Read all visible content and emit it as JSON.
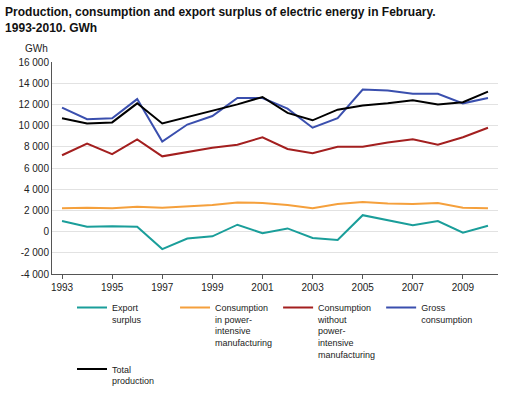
{
  "chart_data": {
    "type": "line",
    "title": "Production, consumption and export surplus of electric energy in February.\n1993-2010. GWh",
    "y_label": "GWh",
    "x": [
      1993,
      1994,
      1995,
      1996,
      1997,
      1998,
      1999,
      2000,
      2001,
      2002,
      2003,
      2004,
      2005,
      2006,
      2007,
      2008,
      2009,
      2010
    ],
    "xlim": [
      1992.6,
      2010.4
    ],
    "xticks": [
      1993,
      1995,
      1997,
      1999,
      2001,
      2003,
      2005,
      2007,
      2009
    ],
    "ylim": [
      -4000,
      16000
    ],
    "yticks": [
      {
        "value": -4000,
        "label": "-4 000"
      },
      {
        "value": -2000,
        "label": "-2 000"
      },
      0,
      {
        "value": 2000,
        "label": "2 000"
      },
      {
        "value": 4000,
        "label": "4 000"
      },
      {
        "value": 6000,
        "label": "6 000"
      },
      {
        "value": 8000,
        "label": "8 000"
      },
      {
        "value": 10000,
        "label": "10 000"
      },
      {
        "value": 12000,
        "label": "12 000"
      },
      {
        "value": 14000,
        "label": "14 000"
      },
      {
        "value": 16000,
        "label": "16 000"
      }
    ],
    "grid": true,
    "legend": "bottom",
    "series": [
      {
        "name": "Export surplus",
        "color": "#1a9e9a",
        "values": [
          1000,
          450,
          500,
          450,
          -1650,
          -650,
          -450,
          650,
          -150,
          300,
          -600,
          -800,
          1550,
          1100,
          600,
          1000,
          -100,
          550
        ]
      },
      {
        "name": "Consumption in power-intensive manufacturing",
        "color": "#f5a03c",
        "values": [
          2200,
          2250,
          2200,
          2350,
          2250,
          2400,
          2500,
          2750,
          2700,
          2500,
          2200,
          2600,
          2800,
          2650,
          2600,
          2700,
          2250,
          2200
        ]
      },
      {
        "name": "Consumption without power-intensive manufacturing",
        "color": "#a31f1f",
        "values": [
          7200,
          8300,
          7300,
          8700,
          7100,
          7500,
          7900,
          8200,
          8900,
          7800,
          7400,
          8000,
          8000,
          8400,
          8700,
          8200,
          8900,
          9800
        ]
      },
      {
        "name": "Gross consumption",
        "color": "#3a4fae",
        "values": [
          11700,
          10600,
          10700,
          12500,
          8500,
          10100,
          10900,
          12600,
          12600,
          11600,
          9800,
          10700,
          13400,
          13300,
          13000,
          13000,
          12100,
          12600
        ]
      },
      {
        "name": "Total production",
        "color": "#000000",
        "values": [
          10700,
          10200,
          10300,
          12100,
          10200,
          10800,
          11400,
          12000,
          12700,
          11200,
          10500,
          11500,
          11900,
          12100,
          12400,
          12000,
          12200,
          13200
        ]
      }
    ]
  }
}
